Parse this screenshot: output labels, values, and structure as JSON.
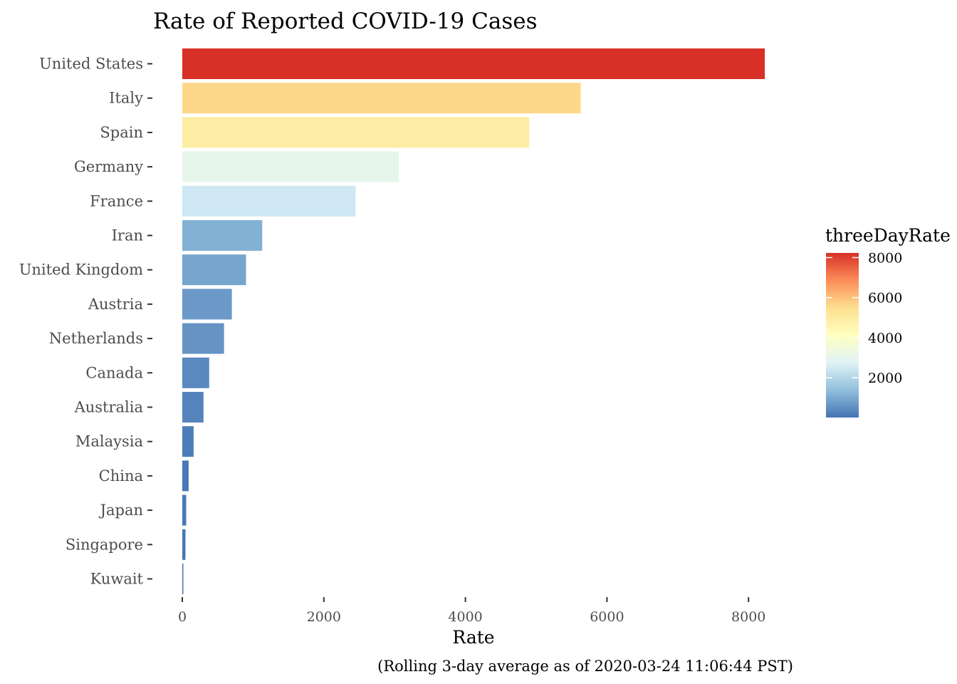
{
  "chart_data": {
    "type": "bar",
    "orientation": "horizontal",
    "title": "Rate of Reported COVID-19 Cases",
    "xlabel": "Rate",
    "ylabel": "",
    "caption": "(Rolling 3-day average as of 2020-03-24 11:06:44 PST)",
    "categories": [
      "United States",
      "Italy",
      "Spain",
      "Germany",
      "France",
      "Iran",
      "United Kingdom",
      "Austria",
      "Netherlands",
      "Canada",
      "Australia",
      "Malaysia",
      "China",
      "Japan",
      "Singapore",
      "Kuwait"
    ],
    "values": [
      8230,
      5630,
      4900,
      3060,
      2450,
      1130,
      900,
      700,
      590,
      380,
      300,
      160,
      90,
      55,
      45,
      15
    ],
    "xlim": [
      0,
      9000
    ],
    "xticks": [
      0,
      2000,
      4000,
      6000,
      8000
    ],
    "xtick_labels": [
      "0",
      "2000",
      "4000",
      "6000",
      "8000"
    ],
    "grid": false,
    "legend": {
      "title": "threeDayRate",
      "placement": "right",
      "range": [
        15,
        8230
      ],
      "ticks": [
        2000,
        4000,
        6000,
        8000
      ],
      "tick_labels": [
        "2000",
        "4000",
        "6000",
        "8000"
      ],
      "colors": [
        "#4575b4",
        "#91bfdb",
        "#e0f3f8",
        "#ffffbf",
        "#fee090",
        "#fc8d59",
        "#d73027"
      ]
    }
  }
}
